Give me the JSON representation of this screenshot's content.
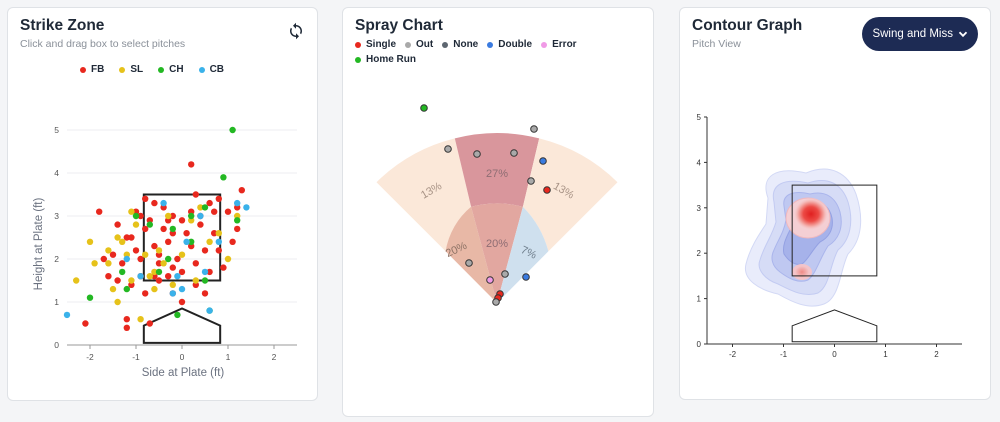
{
  "strike_zone": {
    "title": "Strike Zone",
    "subtitle": "Click and drag box to select pitches",
    "refresh_icon": "refresh-icon",
    "legend": [
      {
        "label": "FB",
        "color": "#e8281e"
      },
      {
        "label": "SL",
        "color": "#e6c21a"
      },
      {
        "label": "CH",
        "color": "#23b823"
      },
      {
        "label": "CB",
        "color": "#3ab2ea"
      }
    ],
    "x_axis_label": "Side at Plate (ft)",
    "y_axis_label": "Height at Plate (ft)",
    "x_ticks": [
      "-2",
      "-1",
      "0",
      "1",
      "2"
    ],
    "y_ticks": [
      "0",
      "1",
      "2",
      "3",
      "4",
      "5"
    ],
    "chart_data": {
      "type": "scatter",
      "xlabel": "Side at Plate (ft)",
      "ylabel": "Height at Plate (ft)",
      "xlim": [
        -2.5,
        2.5
      ],
      "ylim": [
        0,
        5
      ],
      "series": [
        {
          "name": "FB",
          "points": [
            [
              -2.1,
              0.5
            ],
            [
              -1.8,
              3.1
            ],
            [
              -1.7,
              2.0
            ],
            [
              -1.4,
              2.8
            ],
            [
              -1.2,
              2.5
            ],
            [
              -1.0,
              3.1
            ],
            [
              -1.6,
              1.6
            ],
            [
              -1.3,
              1.9
            ],
            [
              -1.0,
              2.2
            ],
            [
              -0.8,
              2.7
            ],
            [
              -0.8,
              3.4
            ],
            [
              -0.6,
              3.3
            ],
            [
              -0.4,
              3.2
            ],
            [
              -0.3,
              2.9
            ],
            [
              -0.2,
              2.6
            ],
            [
              0.0,
              2.9
            ],
            [
              0.2,
              3.1
            ],
            [
              0.3,
              3.5
            ],
            [
              0.4,
              3.0
            ],
            [
              0.6,
              3.3
            ],
            [
              0.7,
              2.6
            ],
            [
              0.8,
              3.4
            ],
            [
              1.0,
              3.1
            ],
            [
              1.2,
              2.7
            ],
            [
              1.3,
              3.6
            ],
            [
              1.2,
              3.2
            ],
            [
              0.2,
              4.2
            ],
            [
              -0.6,
              2.3
            ],
            [
              -0.9,
              2.0
            ],
            [
              -0.5,
              1.9
            ],
            [
              -0.2,
              1.8
            ],
            [
              0.0,
              1.7
            ],
            [
              0.3,
              1.9
            ],
            [
              0.6,
              1.7
            ],
            [
              0.5,
              2.2
            ],
            [
              -0.3,
              2.4
            ],
            [
              -1.1,
              1.4
            ],
            [
              -1.4,
              1.5
            ],
            [
              -0.8,
              1.2
            ],
            [
              -0.5,
              1.5
            ],
            [
              -0.2,
              1.2
            ],
            [
              0.3,
              1.4
            ],
            [
              0.0,
              1.0
            ],
            [
              -1.2,
              0.6
            ],
            [
              -0.7,
              0.5
            ],
            [
              -1.2,
              0.4
            ],
            [
              0.5,
              1.2
            ],
            [
              -0.9,
              1.6
            ],
            [
              -0.3,
              1.6
            ],
            [
              0.4,
              2.8
            ],
            [
              0.9,
              1.8
            ],
            [
              -0.1,
              2.0
            ],
            [
              -0.7,
              2.9
            ],
            [
              0.1,
              2.6
            ],
            [
              -0.4,
              2.7
            ],
            [
              -0.6,
              1.6
            ],
            [
              0.8,
              2.2
            ],
            [
              1.1,
              2.4
            ],
            [
              -1.5,
              2.1
            ],
            [
              0.7,
              3.1
            ],
            [
              -0.2,
              3.0
            ],
            [
              -0.9,
              3.0
            ],
            [
              -0.5,
              2.1
            ],
            [
              0.2,
              2.3
            ],
            [
              -1.1,
              2.5
            ]
          ]
        },
        {
          "name": "SL",
          "points": [
            [
              -2.3,
              1.5
            ],
            [
              -1.9,
              1.9
            ],
            [
              -1.6,
              2.2
            ],
            [
              -1.4,
              2.5
            ],
            [
              -1.4,
              1.0
            ],
            [
              -1.5,
              1.3
            ],
            [
              -1.3,
              2.4
            ],
            [
              -1.1,
              1.5
            ],
            [
              -1.0,
              2.8
            ],
            [
              -0.9,
              0.6
            ],
            [
              -0.7,
              1.6
            ],
            [
              -0.6,
              1.3
            ],
            [
              -0.5,
              2.2
            ],
            [
              -0.4,
              1.9
            ],
            [
              -0.3,
              3.0
            ],
            [
              -0.2,
              1.4
            ],
            [
              0.0,
              2.1
            ],
            [
              0.2,
              2.9
            ],
            [
              0.4,
              3.2
            ],
            [
              0.6,
              2.4
            ],
            [
              0.8,
              2.6
            ],
            [
              1.0,
              2.0
            ],
            [
              1.2,
              3.0
            ],
            [
              -1.1,
              3.1
            ],
            [
              -1.6,
              1.9
            ],
            [
              -0.6,
              1.7
            ],
            [
              0.3,
              1.5
            ],
            [
              -1.2,
              2.1
            ],
            [
              -2.0,
              2.4
            ],
            [
              -0.8,
              2.1
            ]
          ]
        },
        {
          "name": "CH",
          "points": [
            [
              -2.0,
              1.1
            ],
            [
              -1.3,
              1.7
            ],
            [
              -1.0,
              3.0
            ],
            [
              -0.7,
              2.8
            ],
            [
              -0.5,
              1.7
            ],
            [
              -0.3,
              2.0
            ],
            [
              -0.2,
              2.7
            ],
            [
              -0.1,
              0.7
            ],
            [
              0.2,
              2.4
            ],
            [
              0.5,
              3.2
            ],
            [
              0.6,
              0.8
            ],
            [
              0.9,
              3.9
            ],
            [
              1.1,
              5.0
            ],
            [
              -1.2,
              1.3
            ],
            [
              0.2,
              3.0
            ],
            [
              1.2,
              2.9
            ],
            [
              0.5,
              1.5
            ]
          ]
        },
        {
          "name": "CB",
          "points": [
            [
              -2.5,
              0.7
            ],
            [
              -1.2,
              2.0
            ],
            [
              -0.9,
              1.6
            ],
            [
              -0.4,
              3.3
            ],
            [
              -0.2,
              1.2
            ],
            [
              0.0,
              1.3
            ],
            [
              0.4,
              3.0
            ],
            [
              0.5,
              1.7
            ],
            [
              0.6,
              0.8
            ],
            [
              0.8,
              2.4
            ],
            [
              1.2,
              3.3
            ],
            [
              1.4,
              3.2
            ],
            [
              -0.1,
              1.6
            ],
            [
              0.1,
              2.4
            ]
          ]
        }
      ],
      "zone": {
        "x": [
          -0.83,
          0.83
        ],
        "y": [
          1.5,
          3.5
        ]
      }
    }
  },
  "spray_chart": {
    "title": "Spray Chart",
    "legend": [
      {
        "label": "Single",
        "color": "#e8281e"
      },
      {
        "label": "Out",
        "color": "#a9a9a9"
      },
      {
        "label": "None",
        "color": "#5d6670"
      },
      {
        "label": "Double",
        "color": "#3a7be0"
      },
      {
        "label": "Error",
        "color": "#f09ae6"
      },
      {
        "label": "Home Run",
        "color": "#23b823"
      }
    ],
    "zones": [
      {
        "label": "13%",
        "name": "left-field"
      },
      {
        "label": "27%",
        "name": "center-field"
      },
      {
        "label": "13%",
        "name": "right-field"
      },
      {
        "label": "20%",
        "name": "infield-left"
      },
      {
        "label": "20%",
        "name": "infield-center"
      },
      {
        "label": "7%",
        "name": "infield-right"
      }
    ]
  },
  "contour": {
    "title": "Contour Graph",
    "subtitle": "Pitch View",
    "dropdown_label": "Swing and Miss",
    "dropdown_icon": "chevron-down-icon",
    "x_ticks": [
      "-2",
      "-1",
      "0",
      "1",
      "2"
    ],
    "y_ticks": [
      "0",
      "1",
      "2",
      "3",
      "4",
      "5"
    ]
  },
  "colors": {
    "navy": "#1d2b54",
    "single": "#e8281e",
    "out": "#a9a9a9"
  }
}
